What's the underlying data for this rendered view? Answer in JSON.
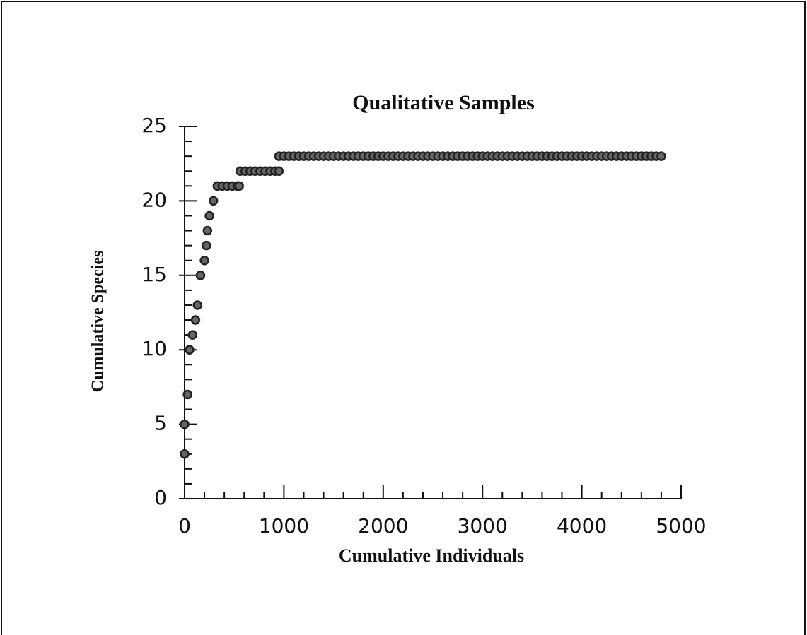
{
  "chart_data": {
    "type": "scatter",
    "title": "Qualitative  Samples",
    "xlabel": "Cumulative  Individuals",
    "ylabel": "Cumulative Species",
    "x": [
      0,
      0,
      30,
      50,
      80,
      110,
      130,
      160,
      200,
      220,
      230,
      250,
      290,
      330,
      380,
      430,
      480,
      530,
      550,
      560,
      610,
      660,
      710,
      760,
      810,
      860,
      910,
      950,
      950,
      1000,
      1050,
      1100,
      1150,
      1200,
      1250,
      1300,
      1350,
      1400,
      1450,
      1500,
      1550,
      1600,
      1650,
      1700,
      1750,
      1800,
      1850,
      1900,
      1950,
      2000,
      2050,
      2100,
      2150,
      2200,
      2250,
      2300,
      2350,
      2400,
      2450,
      2500,
      2550,
      2600,
      2650,
      2700,
      2750,
      2800,
      2850,
      2900,
      2950,
      3000,
      3050,
      3100,
      3150,
      3200,
      3250,
      3300,
      3350,
      3400,
      3450,
      3500,
      3550,
      3600,
      3650,
      3700,
      3750,
      3800,
      3850,
      3900,
      3950,
      4000,
      4050,
      4100,
      4150,
      4200,
      4250,
      4300,
      4350,
      4400,
      4450,
      4500,
      4550,
      4600,
      4650,
      4700,
      4750,
      4800
    ],
    "values": [
      3,
      5,
      7,
      10,
      11,
      12,
      13,
      15,
      16,
      17,
      18,
      19,
      20,
      21,
      21,
      21,
      21,
      21,
      21,
      22,
      22,
      22,
      22,
      22,
      22,
      22,
      22,
      22,
      23,
      23,
      23,
      23,
      23,
      23,
      23,
      23,
      23,
      23,
      23,
      23,
      23,
      23,
      23,
      23,
      23,
      23,
      23,
      23,
      23,
      23,
      23,
      23,
      23,
      23,
      23,
      23,
      23,
      23,
      23,
      23,
      23,
      23,
      23,
      23,
      23,
      23,
      23,
      23,
      23,
      23,
      23,
      23,
      23,
      23,
      23,
      23,
      23,
      23,
      23,
      23,
      23,
      23,
      23,
      23,
      23,
      23,
      23,
      23,
      23,
      23,
      23,
      23,
      23,
      23,
      23,
      23,
      23,
      23,
      23,
      23,
      23,
      23,
      23,
      23,
      23,
      23
    ],
    "color": "#222222",
    "xlim": [
      0,
      5000
    ],
    "ylim": [
      0,
      25
    ],
    "xticks": [
      0,
      1000,
      2000,
      3000,
      4000,
      5000
    ],
    "yticks": [
      0,
      5,
      10,
      15,
      20,
      25
    ],
    "xminorticks": [
      200,
      400,
      600,
      800,
      1200,
      1400,
      1600,
      1800,
      2200,
      2400,
      2600,
      2800,
      3200,
      3400,
      3600,
      3800,
      4200,
      4400,
      4600,
      4800
    ],
    "yminorticks": [
      1,
      2,
      3,
      4,
      6,
      7,
      8,
      9,
      11,
      12,
      13,
      14,
      16,
      17,
      18,
      19,
      21,
      22,
      23,
      24
    ]
  }
}
